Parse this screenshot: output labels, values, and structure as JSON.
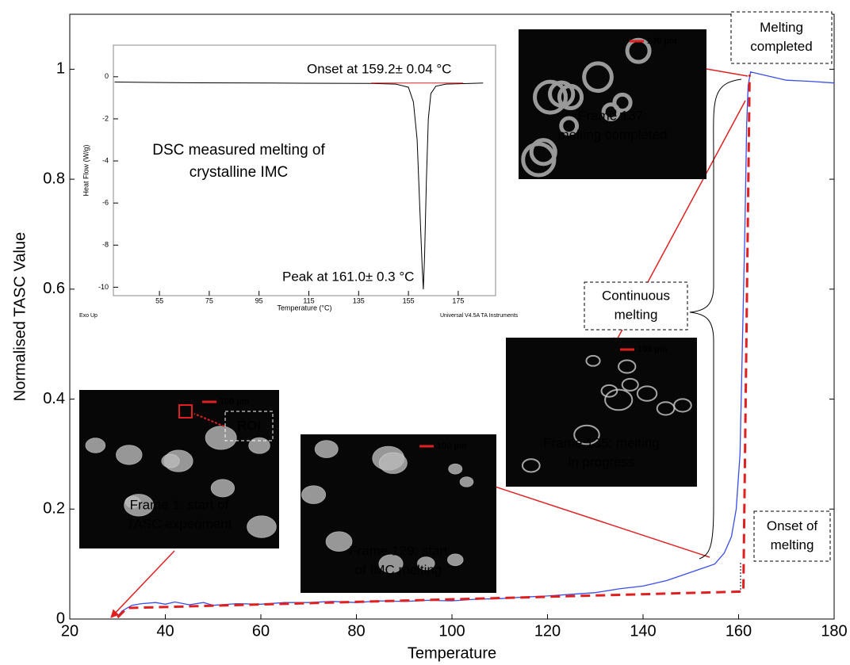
{
  "chart_data": [
    {
      "type": "line",
      "x_label": "Temperature",
      "y_label": "Normalised TASC Value",
      "xlim": [
        20,
        180
      ],
      "ylim": [
        0,
        1.1
      ],
      "xticks": [
        20,
        40,
        60,
        80,
        100,
        120,
        140,
        160,
        180
      ],
      "yticks": [
        0,
        0.2,
        0.4,
        0.6,
        0.8,
        1
      ],
      "series": [
        {
          "color": "#3a4ee8",
          "style": "solid",
          "x": [
            30,
            31,
            33,
            35,
            38,
            40,
            42,
            45,
            48,
            50,
            55,
            60,
            65,
            70,
            75,
            80,
            85,
            90,
            95,
            100,
            105,
            110,
            115,
            120,
            125,
            130,
            135,
            140,
            145,
            150,
            155,
            157,
            158.5,
            159.5,
            160.3,
            160.8,
            161.3,
            161.7,
            162,
            162.5,
            165,
            170,
            175,
            180
          ],
          "values": [
            0.005,
            0.015,
            0.025,
            0.028,
            0.03,
            0.027,
            0.031,
            0.026,
            0.03,
            0.025,
            0.028,
            0.027,
            0.03,
            0.03,
            0.032,
            0.03,
            0.033,
            0.032,
            0.034,
            0.033,
            0.036,
            0.037,
            0.04,
            0.042,
            0.045,
            0.048,
            0.055,
            0.06,
            0.07,
            0.085,
            0.1,
            0.12,
            0.15,
            0.2,
            0.3,
            0.5,
            0.7,
            0.9,
            0.97,
            0.995,
            0.99,
            0.98,
            0.978,
            0.975
          ]
        },
        {
          "color": "#e02020",
          "style": "dashed",
          "x": [
            30,
            32,
            161,
            162.3
          ],
          "values": [
            0.003,
            0.02,
            0.05,
            0.99
          ]
        }
      ],
      "callouts": [
        {
          "lines": [
            "Melting",
            "completed"
          ]
        },
        {
          "lines": [
            "Continuous",
            "melting"
          ]
        },
        {
          "lines": [
            "Onset of",
            "melting"
          ]
        }
      ]
    },
    {
      "type": "line",
      "title": [
        "DSC measured melting of",
        "crystalline IMC"
      ],
      "x_label": "Temperature (°C)",
      "y_label": "Heat Flow (W/g)",
      "footer_left": "Exo Up",
      "footer_right": "Universal V4.5A TA Instruments",
      "xlim": [
        36.5,
        190
      ],
      "ylim": [
        -10.4,
        1.5
      ],
      "xticks": [
        55,
        75,
        95,
        115,
        135,
        155,
        175
      ],
      "yticks": [
        0,
        -2,
        -4,
        -6,
        -8,
        -10
      ],
      "annotations": [
        "Onset at 159.2± 0.04  °C",
        "Peak at 161.0± 0.3  °C"
      ],
      "series": [
        {
          "color": "#000000",
          "style": "solid",
          "x": [
            37,
            60,
            100,
            140,
            150,
            155,
            157,
            158.5,
            159.5,
            160.5,
            161,
            161.5,
            162.2,
            163,
            164,
            166,
            170,
            180,
            185
          ],
          "values": [
            -0.25,
            -0.28,
            -0.3,
            -0.32,
            -0.35,
            -0.5,
            -1.2,
            -3,
            -6,
            -9,
            -10.1,
            -8.5,
            -5,
            -2,
            -0.8,
            -0.45,
            -0.35,
            -0.32,
            -0.3
          ]
        },
        {
          "color": "#e02020",
          "style": "solid",
          "x": [
            140,
            177
          ],
          "values": [
            -0.3,
            -0.3
          ]
        }
      ]
    }
  ],
  "panels": [
    {
      "caption": [
        "Frame 137:",
        "melting completed"
      ],
      "scale": "100 µm"
    },
    {
      "caption": [
        "Frame 135: melting",
        "in progress"
      ],
      "scale": "100 µm"
    },
    {
      "caption": [
        "Frame 1: start of",
        "TASC experiment"
      ],
      "scale": "100 µm",
      "roi": "ROI"
    },
    {
      "caption": [
        "Frame 129: start",
        "of IMC melting"
      ],
      "scale": "100 µm"
    }
  ]
}
